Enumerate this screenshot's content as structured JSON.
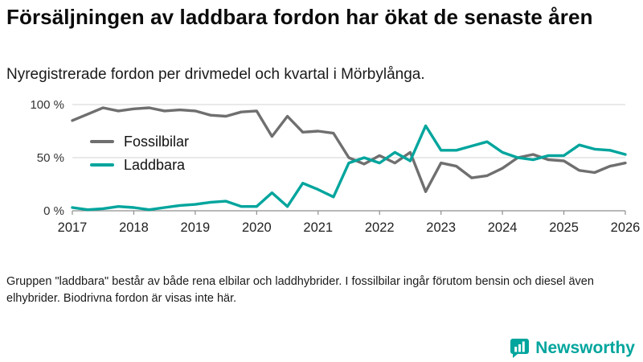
{
  "title": "Försäljningen av laddbara fordon har ökat de senaste åren",
  "subtitle": "Nyregistrerade fordon per drivmedel och kvartal i Mörbylånga.",
  "footnote": "Gruppen \"laddbara\" består av både rena elbilar och laddhybrider. I fossilbilar ingår förutom bensin och diesel även elhybrider. Biodrivna fordon är visas inte här.",
  "brand": {
    "name": "Newsworthy",
    "color": "#00a59d"
  },
  "chart_data": {
    "type": "line",
    "title": "Försäljningen av laddbara fordon har ökat de senaste åren",
    "subtitle": "Nyregistrerade fordon per drivmedel och kvartal i Mörbylånga.",
    "x_unit": "quarter",
    "quarters": [
      "2017 Q1",
      "2017 Q2",
      "2017 Q3",
      "2017 Q4",
      "2018 Q1",
      "2018 Q2",
      "2018 Q3",
      "2018 Q4",
      "2019 Q1",
      "2019 Q2",
      "2019 Q3",
      "2019 Q4",
      "2020 Q1",
      "2020 Q2",
      "2020 Q3",
      "2020 Q4",
      "2021 Q1",
      "2021 Q2",
      "2021 Q3",
      "2021 Q4",
      "2022 Q1",
      "2022 Q2",
      "2022 Q3",
      "2022 Q4",
      "2023 Q1",
      "2023 Q2",
      "2023 Q3",
      "2023 Q4",
      "2024 Q1",
      "2024 Q2",
      "2024 Q3",
      "2024 Q4",
      "2025 Q1",
      "2025 Q2",
      "2025 Q3",
      "2025 Q4",
      "2026 Q1"
    ],
    "series": [
      {
        "name": "Fossilbilar",
        "color": "#6f6f6f",
        "values": [
          85,
          91,
          97,
          94,
          96,
          97,
          94,
          95,
          94,
          90,
          89,
          93,
          94,
          70,
          89,
          74,
          75,
          73,
          50,
          44,
          52,
          45,
          55,
          18,
          45,
          42,
          31,
          33,
          40,
          50,
          53,
          48,
          47,
          38,
          36,
          42,
          45
        ]
      },
      {
        "name": "Laddbara",
        "color": "#00a59d",
        "values": [
          3,
          1,
          2,
          4,
          3,
          1,
          3,
          5,
          6,
          8,
          9,
          4,
          4,
          17,
          4,
          26,
          20,
          13,
          45,
          50,
          45,
          55,
          47,
          80,
          57,
          57,
          61,
          65,
          55,
          50,
          48,
          52,
          52,
          62,
          58,
          57,
          53
        ]
      }
    ],
    "ylim": [
      0,
      100
    ],
    "yticks": [
      100,
      50,
      0
    ],
    "ytick_labels": [
      "100 %",
      "50 %",
      "0 %"
    ],
    "xticks": [
      2017,
      2018,
      2019,
      2020,
      2021,
      2022,
      2023,
      2024,
      2025,
      2026
    ],
    "grid": "horizontal",
    "grid_color": "#dcdcdc",
    "axis_color": "#8f8f8f",
    "legend_position": "upper-left-inside"
  }
}
